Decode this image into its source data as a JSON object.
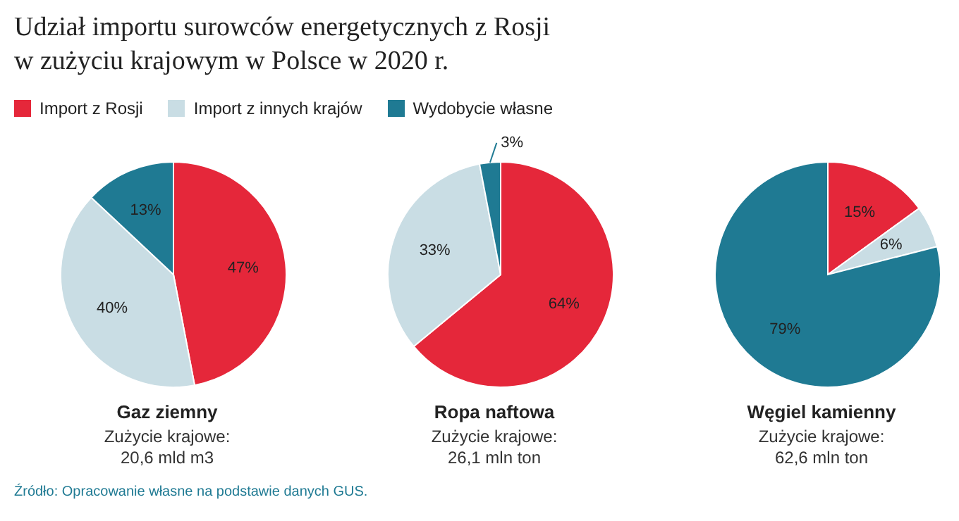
{
  "chart_data": [
    {
      "type": "pie",
      "title": "Udział importu surowców energetycznych z Rosji\nw zużyciu krajowym w Polsce w 2020 r.",
      "legend": "top",
      "xlabel": "Gaz ziemny",
      "categories": [
        "Import z Rosji",
        "Import z innych krajów",
        "Wydobycie własne"
      ],
      "values": [
        47,
        40,
        13
      ],
      "value_labels": [
        "47%",
        "40%",
        "13%"
      ],
      "colors": [
        "#e5273a",
        "#c9dde4",
        "#1f7a93"
      ],
      "annotations": [
        "Zużycie krajowe:\n20,6 mld m3",
        "Źródło: Opracowanie własne na podstawie danych GUS."
      ]
    },
    {
      "type": "pie",
      "xlabel": "Ropa naftowa",
      "categories": [
        null,
        null,
        null
      ],
      "values": [
        64,
        33,
        3
      ],
      "value_labels": [
        "64%",
        "33%",
        "3%"
      ],
      "colors": [
        "#e5273a",
        "#c9dde4",
        "#1f7a93"
      ],
      "annotations": [
        "Zużycie krajowe:\n26,1 mln ton"
      ]
    },
    {
      "type": "pie",
      "xlabel": "Węgiel kamienny",
      "categories": [
        null,
        null,
        null
      ],
      "values": [
        15,
        6,
        79
      ],
      "value_labels": [
        "15%",
        "6%",
        "79%"
      ],
      "colors": [
        "#e5273a",
        "#c9dde4",
        "#1f7a93"
      ],
      "annotations": [
        "Zużycie krajowe:\n62,6 mln ton"
      ]
    }
  ]
}
